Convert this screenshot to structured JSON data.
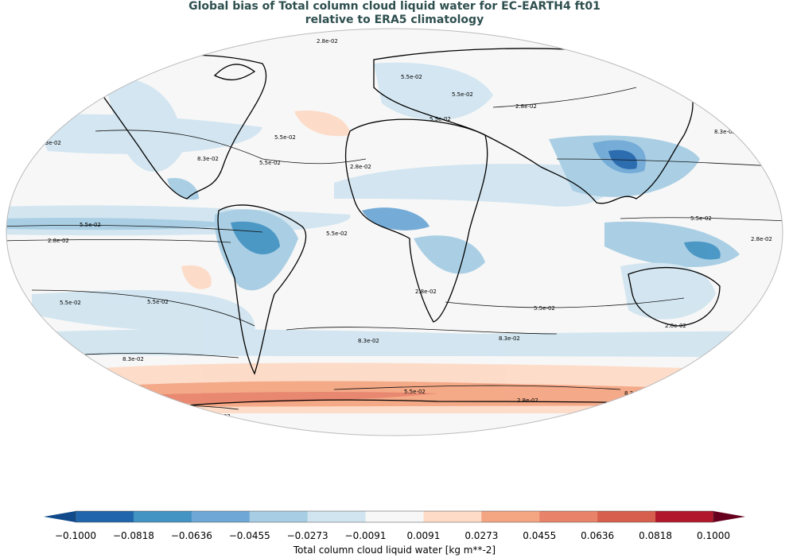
{
  "title": {
    "line1": "Global bias of Total column cloud liquid water for EC-EARTH4 ft01",
    "line2": "relative to ERA5 climatology"
  },
  "colorbar": {
    "label": "Total column cloud liquid water [kg m**-2]",
    "ticks": [
      "−0.1000",
      "−0.0818",
      "−0.0636",
      "−0.0455",
      "−0.0273",
      "−0.0091",
      "0.0091",
      "0.0273",
      "0.0455",
      "0.0636",
      "0.0818",
      "0.1000"
    ],
    "colors": [
      "#2166ac",
      "#4393c3",
      "#6fa8d6",
      "#a6cde3",
      "#d1e5f0",
      "#f7f7f7",
      "#fddbc7",
      "#f4a582",
      "#e8836a",
      "#d6604d",
      "#b2182b"
    ],
    "under_color": "#104a8a",
    "over_color": "#67001f"
  },
  "contour_labels": [
    "2.8e-02",
    "5.5e-02",
    "8.3e-02"
  ]
}
